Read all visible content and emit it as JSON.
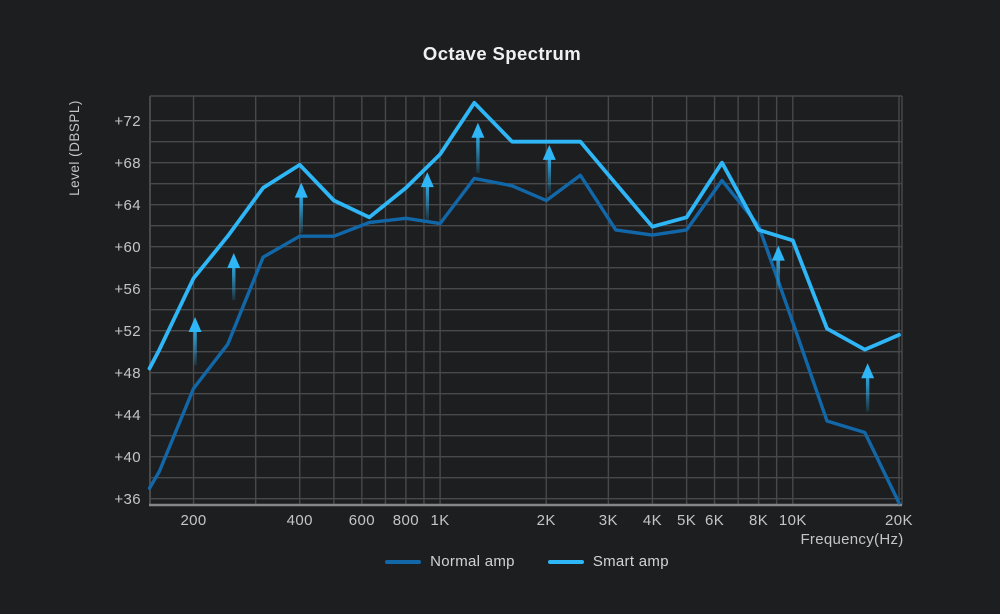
{
  "title": "Octave Spectrum",
  "colors": {
    "background": "#1d1e20",
    "grid": "#48494c",
    "axis_line": "#85868a",
    "title_text": "#f0f0f1",
    "tick_text": "#c4c5c7",
    "legend_text": "#d2d3d5",
    "normal_amp": "#1267a8",
    "smart_amp": "#2eb6f6",
    "arrow": "#2eb6f6"
  },
  "chart_data": {
    "type": "line",
    "title": "Octave Spectrum",
    "xlabel": "Frequency(Hz)",
    "ylabel": "Level (DBSPL)",
    "x_scale": "log",
    "x_range_hz": [
      150.5,
      20400
    ],
    "y_range_db": [
      35.4,
      74.35
    ],
    "grid": {
      "y_min_db": 36,
      "y_max_db": 72,
      "y_step_db": 2,
      "x_lines_hz": [
        200,
        300,
        400,
        500,
        600,
        700,
        800,
        900,
        1000,
        2000,
        3000,
        4000,
        5000,
        6000,
        7000,
        8000,
        9000,
        10000,
        20000
      ]
    },
    "y_ticks": [
      {
        "label": "+36",
        "db": 36
      },
      {
        "label": "+40",
        "db": 40
      },
      {
        "label": "+44",
        "db": 44
      },
      {
        "label": "+48",
        "db": 48
      },
      {
        "label": "+52",
        "db": 52
      },
      {
        "label": "+56",
        "db": 56
      },
      {
        "label": "+60",
        "db": 60
      },
      {
        "label": "+64",
        "db": 64
      },
      {
        "label": "+68",
        "db": 68
      },
      {
        "label": "+72",
        "db": 72
      }
    ],
    "x_ticks": [
      {
        "label": "200",
        "f": 200
      },
      {
        "label": "400",
        "f": 400
      },
      {
        "label": "600",
        "f": 600
      },
      {
        "label": "800",
        "f": 800
      },
      {
        "label": "1K",
        "f": 1000
      },
      {
        "label": "2K",
        "f": 2000
      },
      {
        "label": "3K",
        "f": 3000
      },
      {
        "label": "4K",
        "f": 4000
      },
      {
        "label": "5K",
        "f": 5000
      },
      {
        "label": "6K",
        "f": 6000
      },
      {
        "label": "8K",
        "f": 8000
      },
      {
        "label": "10K",
        "f": 10000
      },
      {
        "label": "20K",
        "f": 20000
      }
    ],
    "series": [
      {
        "name": "Normal amp",
        "color": "#1267a8",
        "points": [
          {
            "f": 150,
            "db": 37.0
          },
          {
            "f": 160,
            "db": 38.6
          },
          {
            "f": 200,
            "db": 46.5
          },
          {
            "f": 250,
            "db": 50.7
          },
          {
            "f": 315,
            "db": 59.0
          },
          {
            "f": 400,
            "db": 61.0
          },
          {
            "f": 500,
            "db": 61.0
          },
          {
            "f": 630,
            "db": 62.3
          },
          {
            "f": 800,
            "db": 62.7
          },
          {
            "f": 1000,
            "db": 62.2
          },
          {
            "f": 1250,
            "db": 66.5
          },
          {
            "f": 1600,
            "db": 65.8
          },
          {
            "f": 2000,
            "db": 64.4
          },
          {
            "f": 2500,
            "db": 66.8
          },
          {
            "f": 3150,
            "db": 61.6
          },
          {
            "f": 4000,
            "db": 61.1
          },
          {
            "f": 5000,
            "db": 61.6
          },
          {
            "f": 6300,
            "db": 66.3
          },
          {
            "f": 8000,
            "db": 62.0
          },
          {
            "f": 10000,
            "db": 52.8
          },
          {
            "f": 12500,
            "db": 43.4
          },
          {
            "f": 16000,
            "db": 42.3
          },
          {
            "f": 20000,
            "db": 35.6
          }
        ]
      },
      {
        "name": "Smart amp",
        "color": "#2eb6f6",
        "points": [
          {
            "f": 150,
            "db": 48.4
          },
          {
            "f": 160,
            "db": 50.2
          },
          {
            "f": 200,
            "db": 57.0
          },
          {
            "f": 250,
            "db": 61.0
          },
          {
            "f": 315,
            "db": 65.6
          },
          {
            "f": 400,
            "db": 67.8
          },
          {
            "f": 500,
            "db": 64.4
          },
          {
            "f": 630,
            "db": 62.8
          },
          {
            "f": 800,
            "db": 65.6
          },
          {
            "f": 1000,
            "db": 68.8
          },
          {
            "f": 1250,
            "db": 73.7
          },
          {
            "f": 1600,
            "db": 70.0
          },
          {
            "f": 2000,
            "db": 70.0
          },
          {
            "f": 2500,
            "db": 70.0
          },
          {
            "f": 3150,
            "db": 66.0
          },
          {
            "f": 4000,
            "db": 61.9
          },
          {
            "f": 5000,
            "db": 62.8
          },
          {
            "f": 6300,
            "db": 68.0
          },
          {
            "f": 8000,
            "db": 61.6
          },
          {
            "f": 10000,
            "db": 60.6
          },
          {
            "f": 12500,
            "db": 52.2
          },
          {
            "f": 16000,
            "db": 50.2
          },
          {
            "f": 20000,
            "db": 51.6
          }
        ]
      }
    ],
    "arrows": [
      {
        "f": 202,
        "from_db": 48.7,
        "to_db": 53.3
      },
      {
        "f": 260,
        "from_db": 54.9,
        "to_db": 59.4
      },
      {
        "f": 404,
        "from_db": 61.3,
        "to_db": 66.1
      },
      {
        "f": 920,
        "from_db": 62.5,
        "to_db": 67.1
      },
      {
        "f": 1280,
        "from_db": 67.0,
        "to_db": 71.8
      },
      {
        "f": 2040,
        "from_db": 65.1,
        "to_db": 69.7
      },
      {
        "f": 9100,
        "from_db": 56.0,
        "to_db": 60.1
      },
      {
        "f": 16300,
        "from_db": 44.3,
        "to_db": 48.9
      }
    ],
    "legend_position": "bottom-center"
  }
}
